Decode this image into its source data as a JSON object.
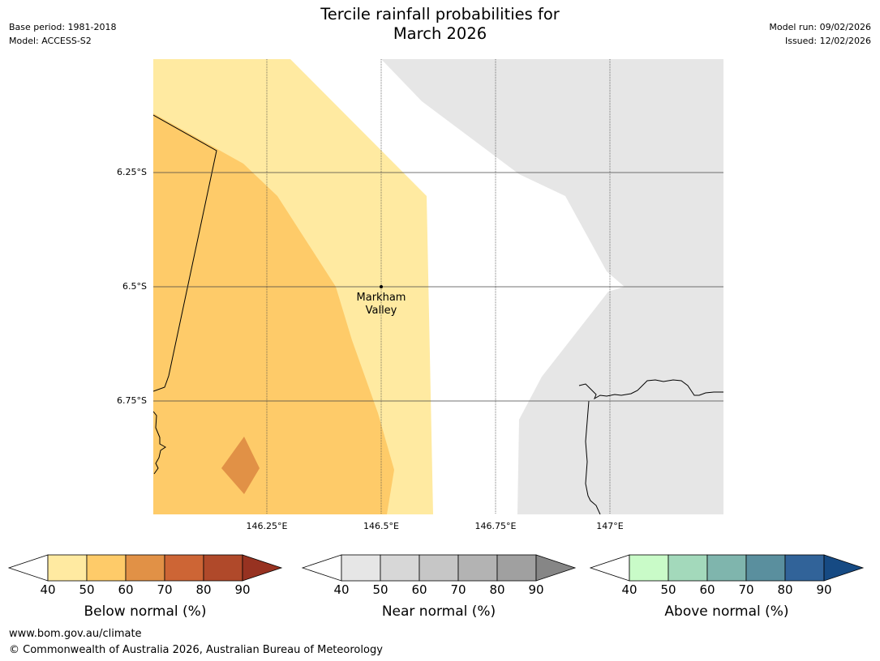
{
  "header": {
    "title_line1": "Tercile rainfall probabilities for",
    "title_line2": "March 2026",
    "base_period": "Base period: 1981-2018",
    "model": "Model: ACCESS-S2",
    "model_run": "Model run: 09/02/2026",
    "issued": "Issued: 12/02/2026"
  },
  "map": {
    "latitude_labels": [
      "6.25°S",
      "6.5°S",
      "6.75°S"
    ],
    "longitude_labels": [
      "146.25°E",
      "146.5°E",
      "146.75°E",
      "147°E"
    ],
    "location": {
      "name_line1": "Markham",
      "name_line2": "Valley"
    }
  },
  "colorbars": [
    {
      "name": "below",
      "label": "Below normal (%)",
      "ticks": [
        "40",
        "50",
        "60",
        "70",
        "80",
        "90"
      ],
      "colors": [
        "#ffeaa1",
        "#fecb69",
        "#e19146",
        "#cd6535",
        "#b0492a",
        "#973221"
      ]
    },
    {
      "name": "near",
      "label": "Near normal (%)",
      "ticks": [
        "40",
        "50",
        "60",
        "70",
        "80",
        "90"
      ],
      "colors": [
        "#e6e6e6",
        "#d7d7d7",
        "#c6c6c6",
        "#b3b3b3",
        "#a0a0a0",
        "#868686"
      ]
    },
    {
      "name": "above",
      "label": "Above normal (%)",
      "ticks": [
        "40",
        "50",
        "60",
        "70",
        "80",
        "90"
      ],
      "colors": [
        "#c9fbc8",
        "#a3d9bb",
        "#7fb5ad",
        "#5a8f9e",
        "#316399",
        "#164a83"
      ]
    }
  ],
  "footer": {
    "url": "www.bom.gov.au/climate",
    "copyright": "© Commonwealth of Australia 2026, Australian Bureau of Meteorology"
  }
}
